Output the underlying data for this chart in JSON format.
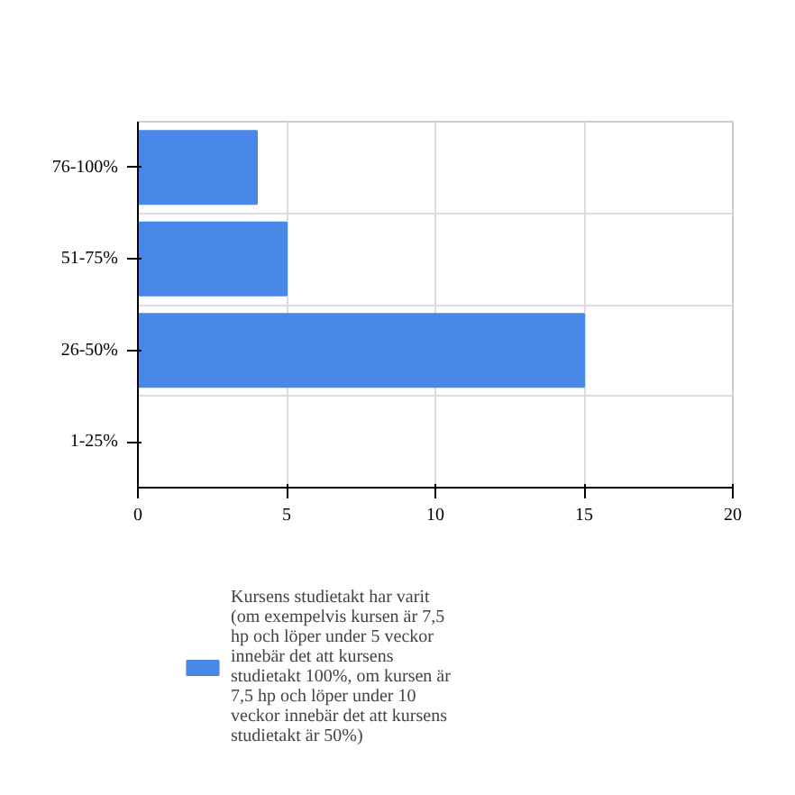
{
  "chart_data": {
    "type": "bar",
    "orientation": "horizontal",
    "categories": [
      "76-100%",
      "51-75%",
      "26-50%",
      "1-25%"
    ],
    "series": [
      {
        "name": "Kursens studietakt har varit (om exempelvis kursen är 7,5 hp och löper under 5 veckor innebär det att kursens studietakt 100%, om kursen är 7,5 hp och löper under 10 veckor innebär det att kursens studietakt är 50%)",
        "color": "#4a88e8",
        "values": [
          4,
          5,
          15,
          0
        ]
      }
    ],
    "xlim": [
      0,
      20
    ],
    "xticks": [
      0,
      5,
      10,
      15,
      20
    ],
    "grid": true,
    "legend": "bottom"
  }
}
